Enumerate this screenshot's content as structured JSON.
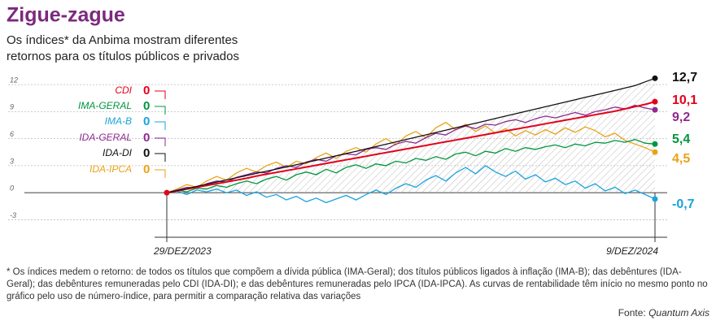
{
  "chart_data": {
    "type": "line",
    "title": "Zigue-zague",
    "subtitle": [
      "Os índices* da Anbima mostram diferentes",
      "retornos para os títulos públicos e privados"
    ],
    "footnote": "* Os índices medem o retorno: de todos os títulos que compõem a dívida pública (IMA-Geral); dos títulos públicos ligados à inflação (IMA-B); das debêntures (IDA-Geral); das debêntures remuneradas pelo CDI (IDA-DI); e das debêntures remuneradas pelo IPCA (IDA-IPCA). As curvas de rentabilidade têm início no mesmo ponto no gráfico pelo uso de número-índice, para permitir a comparação relativa das variações",
    "source_label": "Fonte:",
    "source": "Quantum Axis",
    "categories": [
      "29/DEZ/2023",
      null,
      null,
      null,
      null,
      null,
      null,
      null,
      null,
      null,
      null,
      null,
      null,
      null,
      null,
      null,
      null,
      null,
      null,
      null,
      null,
      null,
      null,
      null,
      null,
      null,
      null,
      null,
      null,
      null,
      null,
      null,
      null,
      null,
      null,
      null,
      null,
      null,
      null,
      null,
      null,
      null,
      null,
      null,
      null,
      null,
      null,
      null,
      null,
      "9/DEZ/2024"
    ],
    "ylim": [
      -3.5,
      13
    ],
    "yticks": [
      12,
      9,
      6,
      3,
      0,
      -3
    ],
    "grid": true,
    "series": [
      {
        "name": "CDI",
        "color": "#e2001a",
        "start_label": "0",
        "end_label": "10,1",
        "values": [
          0,
          0.2,
          0.4,
          0.6,
          0.8,
          1.0,
          1.2,
          1.4,
          1.6,
          1.85,
          2.05,
          2.25,
          2.45,
          2.65,
          2.85,
          3.05,
          3.25,
          3.45,
          3.65,
          3.85,
          4.05,
          4.25,
          4.45,
          4.65,
          4.85,
          5.05,
          5.25,
          5.45,
          5.65,
          5.85,
          6.05,
          6.25,
          6.45,
          6.65,
          6.85,
          7.05,
          7.25,
          7.45,
          7.65,
          7.85,
          8.05,
          8.25,
          8.45,
          8.65,
          8.85,
          9.05,
          9.3,
          9.55,
          9.8,
          10.1
        ]
      },
      {
        "name": "IMA-GERAL",
        "color": "#00963f",
        "start_label": "0",
        "end_label": "5,4",
        "values": [
          0,
          0.3,
          0.1,
          0.5,
          0.4,
          0.8,
          0.6,
          1.0,
          1.3,
          1.0,
          1.5,
          1.8,
          1.4,
          2.0,
          2.3,
          2.0,
          2.6,
          2.2,
          2.8,
          3.1,
          2.7,
          3.2,
          3.0,
          3.5,
          3.3,
          3.8,
          3.6,
          4.0,
          3.7,
          4.3,
          4.5,
          4.1,
          4.6,
          4.4,
          4.9,
          4.6,
          5.0,
          4.8,
          5.1,
          5.3,
          5.0,
          5.4,
          5.2,
          5.6,
          5.5,
          5.8,
          5.6,
          5.9,
          5.5,
          5.4
        ]
      },
      {
        "name": "IMA-B",
        "color": "#1aa3dd",
        "start_label": "0",
        "end_label": "-0,7",
        "values": [
          0,
          0.2,
          -0.2,
          0.3,
          0.1,
          0.4,
          0.0,
          0.3,
          -0.3,
          0.1,
          -0.5,
          -0.2,
          -0.8,
          -0.4,
          -1.0,
          -0.6,
          -1.1,
          -0.7,
          -0.3,
          -0.8,
          -0.2,
          0.3,
          -0.2,
          0.5,
          1.0,
          0.6,
          1.4,
          1.9,
          1.3,
          2.2,
          2.8,
          2.1,
          3.0,
          2.3,
          1.8,
          2.4,
          1.5,
          2.0,
          1.2,
          1.6,
          0.9,
          1.3,
          0.5,
          1.0,
          0.2,
          0.6,
          -0.1,
          0.3,
          -0.2,
          -0.7
        ]
      },
      {
        "name": "IDA-GERAL",
        "color": "#8e2a8e",
        "start_label": "0",
        "end_label": "9,2",
        "values": [
          0,
          0.3,
          0.6,
          0.5,
          1.0,
          1.3,
          1.2,
          1.7,
          2.0,
          2.3,
          2.2,
          2.7,
          3.0,
          2.8,
          3.4,
          3.7,
          3.5,
          4.1,
          4.3,
          4.2,
          4.8,
          5.0,
          4.8,
          5.4,
          5.7,
          5.5,
          6.1,
          6.6,
          6.4,
          7.0,
          7.4,
          7.1,
          7.6,
          7.5,
          7.9,
          8.1,
          7.8,
          8.2,
          8.5,
          8.3,
          8.6,
          8.9,
          8.6,
          9.0,
          9.2,
          9.5,
          9.3,
          9.7,
          9.4,
          9.2
        ]
      },
      {
        "name": "IDA-DI",
        "color": "#111111",
        "start_label": "0",
        "end_label": "12,7",
        "values": [
          0,
          0.22,
          0.46,
          0.7,
          0.94,
          1.18,
          1.42,
          1.66,
          1.9,
          2.14,
          2.38,
          2.62,
          2.86,
          3.1,
          3.35,
          3.6,
          3.85,
          4.1,
          4.35,
          4.6,
          4.86,
          5.12,
          5.38,
          5.64,
          5.9,
          6.16,
          6.42,
          6.68,
          6.94,
          7.2,
          7.46,
          7.72,
          7.98,
          8.24,
          8.5,
          8.76,
          9.02,
          9.28,
          9.54,
          9.8,
          10.06,
          10.32,
          10.58,
          10.84,
          11.1,
          11.36,
          11.62,
          11.88,
          12.3,
          12.7
        ]
      },
      {
        "name": "IDA-IPCA",
        "color": "#e8a317",
        "start_label": "0",
        "end_label": "4,5",
        "values": [
          0,
          0.4,
          0.9,
          0.6,
          1.3,
          1.8,
          1.4,
          2.2,
          2.7,
          2.3,
          3.0,
          3.4,
          2.8,
          3.5,
          3.2,
          3.9,
          4.4,
          3.8,
          4.6,
          5.0,
          4.5,
          5.4,
          6.0,
          5.3,
          6.3,
          6.8,
          6.1,
          7.2,
          7.8,
          7.0,
          7.6,
          6.8,
          7.4,
          6.6,
          7.1,
          6.3,
          6.9,
          6.4,
          7.0,
          6.5,
          7.2,
          6.7,
          7.3,
          6.9,
          6.2,
          6.6,
          5.8,
          5.4,
          5.0,
          4.5
        ]
      }
    ]
  }
}
